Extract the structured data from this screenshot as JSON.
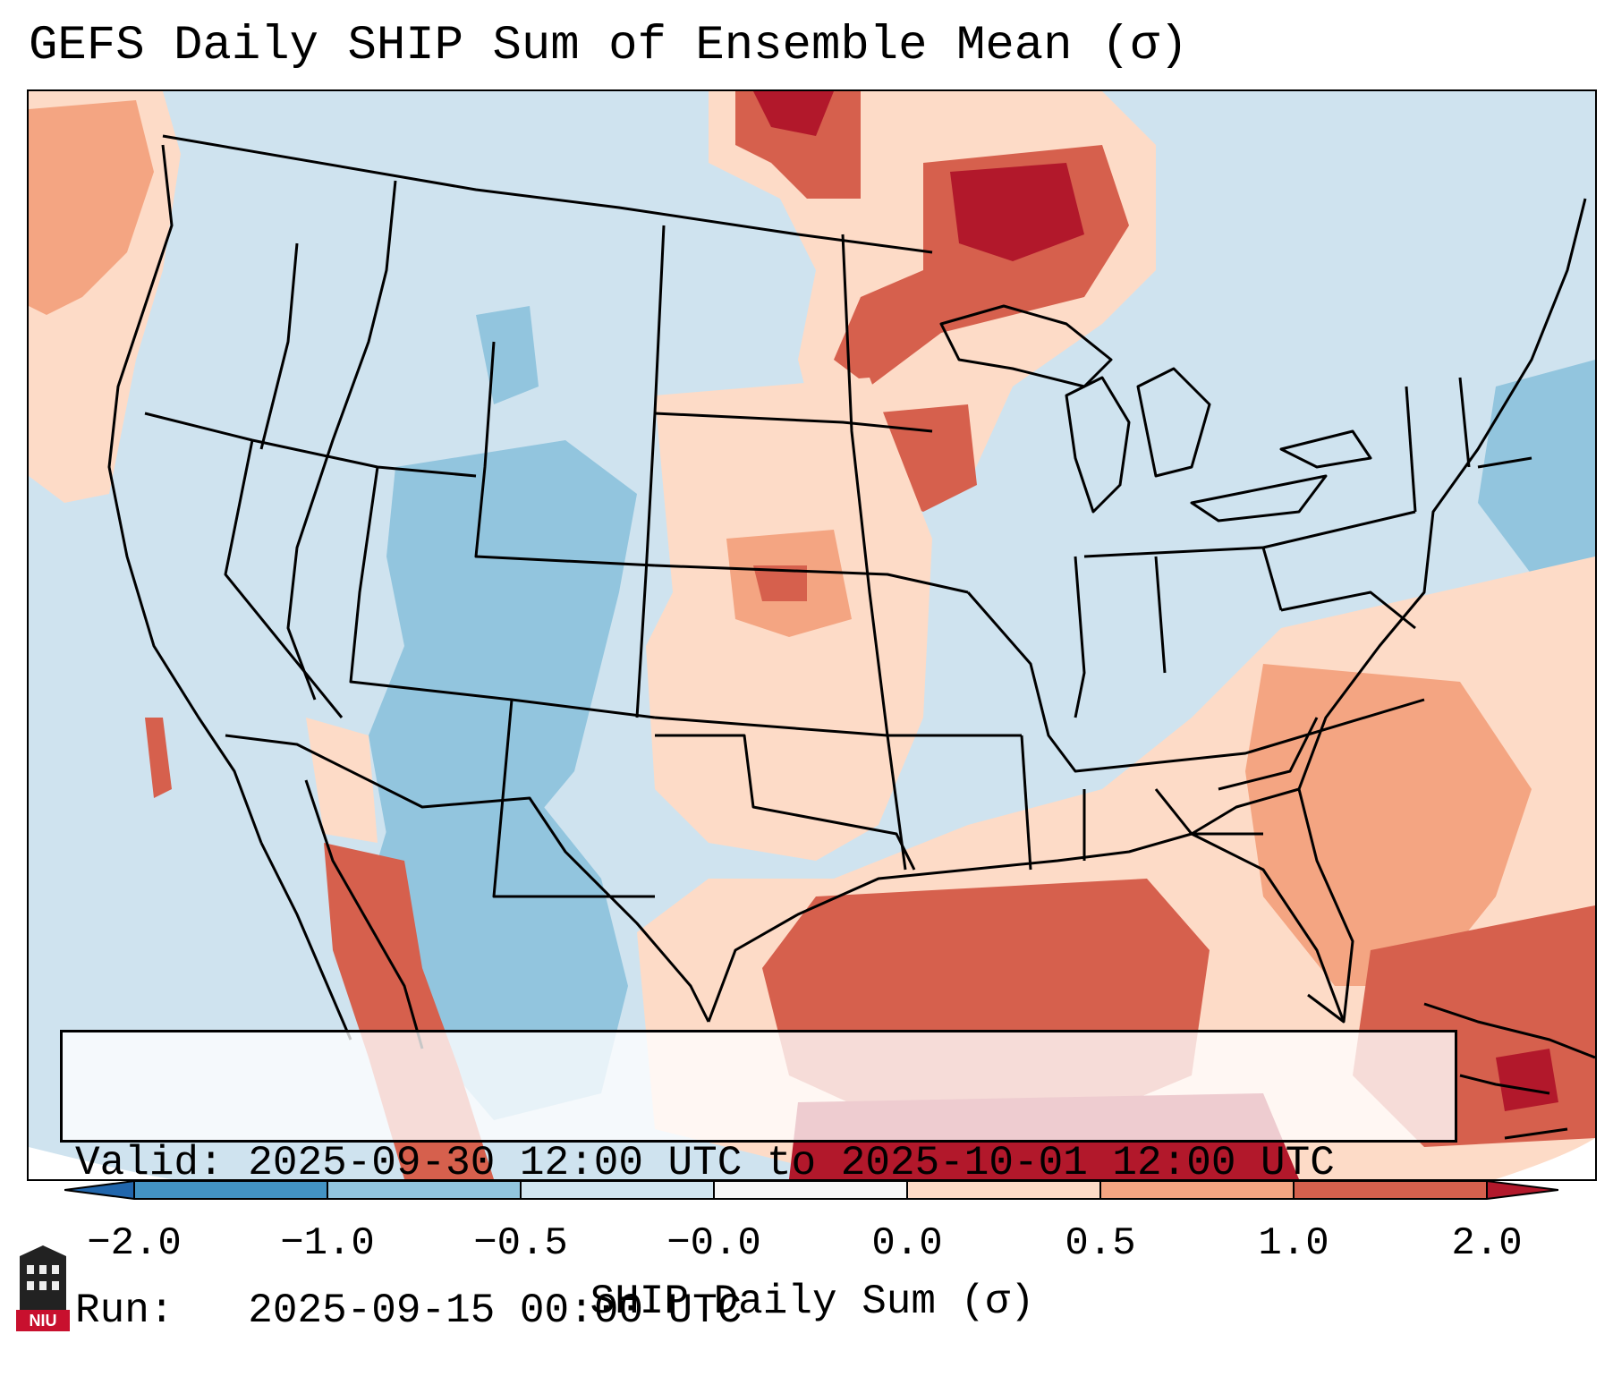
{
  "title": "GEFS Daily SHIP Sum of Ensemble Mean (σ)",
  "info": {
    "valid_label": "Valid:",
    "valid_value": "2025-09-30 12:00 UTC to 2025-10-01 12:00 UTC",
    "run_label": "Run:",
    "run_value": "2025-09-15 00:00 UTC"
  },
  "colorbar": {
    "label": "SHIP Daily Sum (σ)",
    "ticks": [
      "−2.0",
      "−1.0",
      "−0.5",
      "−0.0",
      "0.0",
      "0.5",
      "1.0",
      "2.0"
    ],
    "colors": [
      "#4393c3",
      "#92c5de",
      "#d1e5f0",
      "#f7f7f7",
      "#fddbc7",
      "#f4a582",
      "#d6604d",
      "#b2182b"
    ],
    "under_color": "#2166ac",
    "over_color": "#b2182b"
  },
  "logo": {
    "text": "NIU",
    "brand_color": "#c8102e"
  },
  "map_colors": {
    "background": "#cfe3ef",
    "light_blue": "#cfe3ef",
    "mid_blue": "#92c5de",
    "light_red": "#fddbc7",
    "mid_red": "#f4a582",
    "red": "#d6604d",
    "dark_red": "#b2182b"
  }
}
